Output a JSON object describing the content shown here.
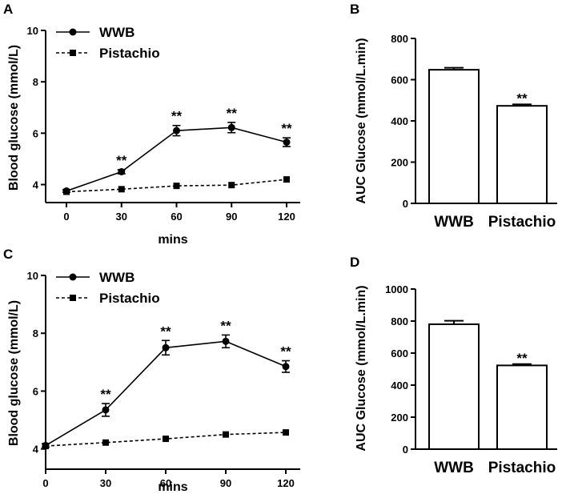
{
  "chart_data": [
    {
      "panel": "A",
      "type": "line",
      "xlabel": "mins",
      "ylabel": "Blood glucose (mmol/L)",
      "x": [
        0,
        30,
        60,
        90,
        120
      ],
      "xticks": [
        "0",
        "30",
        "60",
        "90",
        "120"
      ],
      "ylim": [
        3.3,
        10
      ],
      "yticks": [
        "4",
        "6",
        "8",
        "10"
      ],
      "legend_position": "top-left",
      "series": [
        {
          "name": "WWB",
          "marker": "circle",
          "line": "solid",
          "values": [
            3.75,
            4.5,
            6.1,
            6.22,
            5.65
          ],
          "errors": [
            0.05,
            0.08,
            0.2,
            0.2,
            0.17
          ],
          "annotations": [
            "",
            "**",
            "**",
            "**",
            "**"
          ]
        },
        {
          "name": "Pistachio",
          "marker": "square",
          "line": "dashed",
          "values": [
            3.72,
            3.82,
            3.95,
            3.98,
            4.2
          ],
          "errors": [
            0.03,
            0.03,
            0.03,
            0.03,
            0.03
          ],
          "annotations": [
            "",
            "",
            "",
            "",
            ""
          ]
        }
      ]
    },
    {
      "panel": "B",
      "type": "bar",
      "ylabel": "AUC Glucose (mmol/L.min)",
      "categories": [
        "WWB",
        "Pistachio"
      ],
      "values": [
        648,
        473
      ],
      "errors": [
        10,
        7
      ],
      "annotations": [
        "",
        "**"
      ],
      "ylim": [
        0,
        800
      ],
      "yticks": [
        "0",
        "200",
        "400",
        "600",
        "800"
      ]
    },
    {
      "panel": "C",
      "type": "line",
      "xlabel": "mins",
      "ylabel": "Blood glucose (mmol/L)",
      "x": [
        0,
        30,
        60,
        90,
        120
      ],
      "xticks": [
        "0",
        "30",
        "60",
        "90",
        "120"
      ],
      "ylim": [
        3.3,
        10
      ],
      "yticks": [
        "4",
        "6",
        "8",
        "10"
      ],
      "legend_position": "top-left",
      "series": [
        {
          "name": "WWB",
          "marker": "circle",
          "line": "solid",
          "values": [
            4.12,
            5.35,
            7.5,
            7.72,
            6.85
          ],
          "errors": [
            0.06,
            0.22,
            0.25,
            0.22,
            0.2
          ],
          "annotations": [
            "",
            "**",
            "**",
            "**",
            "**"
          ]
        },
        {
          "name": "Pistachio",
          "marker": "square",
          "line": "dashed",
          "values": [
            4.1,
            4.22,
            4.35,
            4.5,
            4.57
          ],
          "errors": [
            0.03,
            0.03,
            0.03,
            0.03,
            0.03
          ],
          "annotations": [
            "",
            "",
            "",
            "",
            ""
          ]
        }
      ]
    },
    {
      "panel": "D",
      "type": "bar",
      "ylabel": "AUC Glucose (mmol/L.min)",
      "categories": [
        "WWB",
        "Pistachio"
      ],
      "values": [
        780,
        523
      ],
      "errors": [
        22,
        8
      ],
      "annotations": [
        "",
        "**"
      ],
      "ylim": [
        0,
        1000
      ],
      "yticks": [
        "0",
        "200",
        "400",
        "600",
        "800",
        "1000"
      ]
    }
  ]
}
